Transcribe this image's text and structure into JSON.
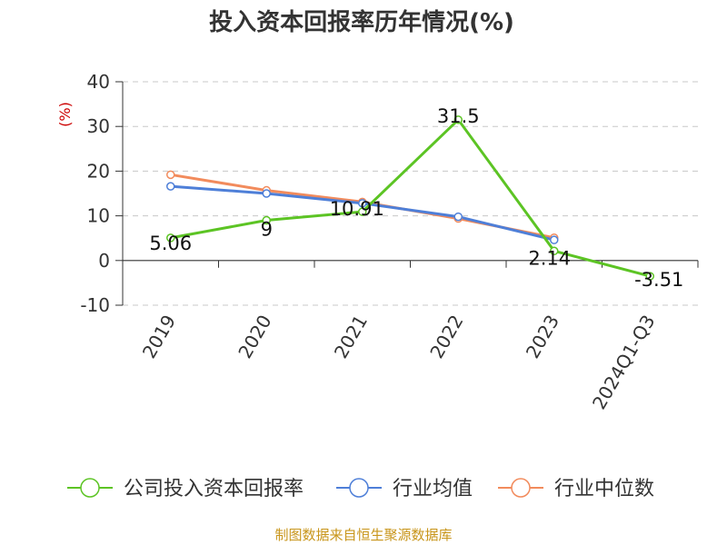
{
  "chart_data": {
    "type": "line",
    "title": "投入资本回报率历年情况(%)",
    "ylabel": "(%)",
    "xlabel": "",
    "categories": [
      "2019",
      "2020",
      "2021",
      "2022",
      "2023",
      "2024Q1-Q3"
    ],
    "ylim": [
      -10,
      40
    ],
    "yticks": [
      40,
      30,
      20,
      10,
      0,
      -10
    ],
    "grid": true,
    "legend_position": "bottom",
    "series": [
      {
        "name": "公司投入资本回报率",
        "color": "#5cc424",
        "values": [
          5.06,
          9,
          10.91,
          31.5,
          2.14,
          -3.51
        ],
        "labels": [
          "5.06",
          "9",
          "10.91",
          "31.5",
          "2.14",
          "-3.51"
        ]
      },
      {
        "name": "行业均值",
        "color": "#4e7fd8",
        "values": [
          16.6,
          15.0,
          12.8,
          9.8,
          4.6,
          null
        ]
      },
      {
        "name": "行业中位数",
        "color": "#f28b5c",
        "values": [
          19.2,
          15.7,
          13.1,
          9.4,
          5.1,
          null
        ]
      }
    ]
  },
  "source_text": "制图数据来自恒生聚源数据库"
}
